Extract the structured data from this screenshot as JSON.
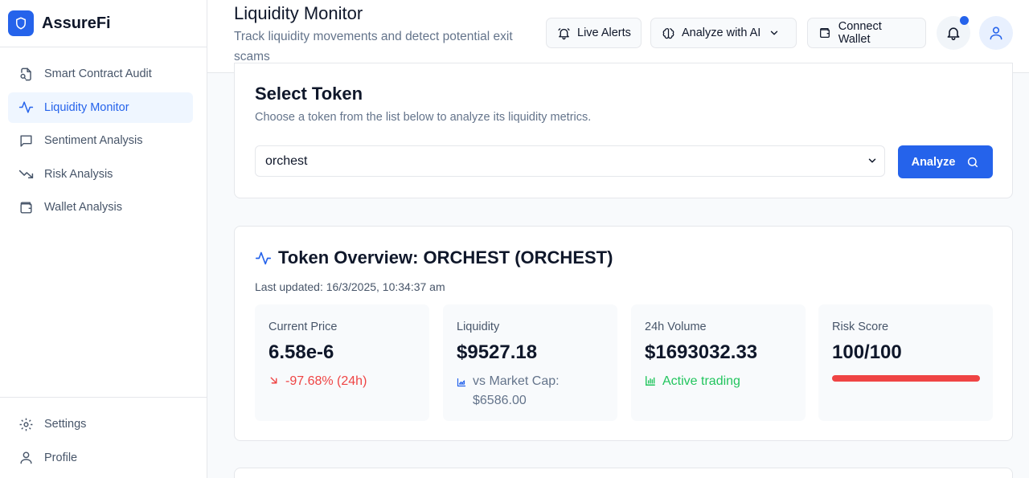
{
  "brand": {
    "name": "AssureFi"
  },
  "sidebar": {
    "items": [
      {
        "label": "Smart Contract Audit",
        "icon": "file-search-icon",
        "active": false
      },
      {
        "label": "Liquidity Monitor",
        "icon": "activity-icon",
        "active": true
      },
      {
        "label": "Sentiment Analysis",
        "icon": "message-square-icon",
        "active": false
      },
      {
        "label": "Risk Analysis",
        "icon": "trending-down-icon",
        "active": false
      },
      {
        "label": "Wallet Analysis",
        "icon": "wallet-icon",
        "active": false
      }
    ],
    "bottom": [
      {
        "label": "Settings",
        "icon": "gear-icon"
      },
      {
        "label": "Profile",
        "icon": "user-icon"
      }
    ]
  },
  "header": {
    "title": "Liquidity Monitor",
    "subtitle": "Track liquidity movements and detect potential exit scams",
    "live_alerts": "Live Alerts",
    "analyze_ai": "Analyze with AI",
    "connect_wallet": "Connect Wallet"
  },
  "select_token": {
    "title": "Select Token",
    "description": "Choose a token from the list below to analyze its liquidity metrics.",
    "selected": "orchest",
    "analyze_label": "Analyze"
  },
  "overview": {
    "title": "Token Overview: ORCHEST (ORCHEST)",
    "last_updated": "Last updated: 16/3/2025, 10:34:37 am",
    "price": {
      "label": "Current Price",
      "value": "6.58e-6",
      "change": "-97.68% (24h)"
    },
    "liquidity": {
      "label": "Liquidity",
      "value": "$9527.18",
      "sub": "vs Market Cap: $6586.00"
    },
    "volume": {
      "label": "24h Volume",
      "value": "$1693032.33",
      "sub": "Active trading"
    },
    "risk": {
      "label": "Risk Score",
      "value": "100/100",
      "level": 1.0
    }
  },
  "colors": {
    "accent": "#2563eb",
    "danger": "#ef4444",
    "success": "#22c55e"
  }
}
